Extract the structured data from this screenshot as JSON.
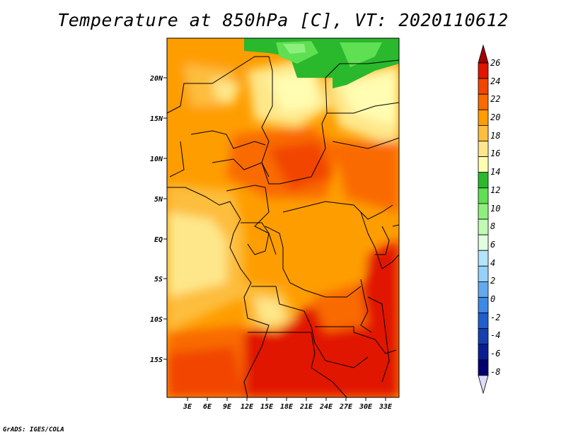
{
  "title": "Temperature at 850hPa [C], VT: 2020110612",
  "credit": "GrADS: IGES/COLA",
  "map": {
    "lat_labels": [
      "20N",
      "15N",
      "10N",
      "5N",
      "EQ",
      "5S",
      "10S",
      "15S"
    ],
    "lon_labels": [
      "3E",
      "6E",
      "9E",
      "12E",
      "15E",
      "18E",
      "21E",
      "24E",
      "27E",
      "30E",
      "33E"
    ]
  },
  "colorbar": {
    "labels": [
      "26",
      "24",
      "22",
      "20",
      "18",
      "16",
      "14",
      "12",
      "10",
      "8",
      "6",
      "4",
      "2",
      "0",
      "-2",
      "-4",
      "-6",
      "-8"
    ],
    "colors": [
      "#a00000",
      "#e11400",
      "#f14500",
      "#f96a00",
      "#fe9d00",
      "#fdbd3d",
      "#fee78a",
      "#fffdb1",
      "#2ab82d",
      "#5fdf52",
      "#8ef07c",
      "#c0fbb3",
      "#e2fdde",
      "#b2e4fb",
      "#94d2fb",
      "#62a9ef",
      "#3d89e4",
      "#1e5fcd",
      "#1440b0",
      "#0c1f92",
      "#000070",
      "#dcdcfd"
    ]
  }
}
